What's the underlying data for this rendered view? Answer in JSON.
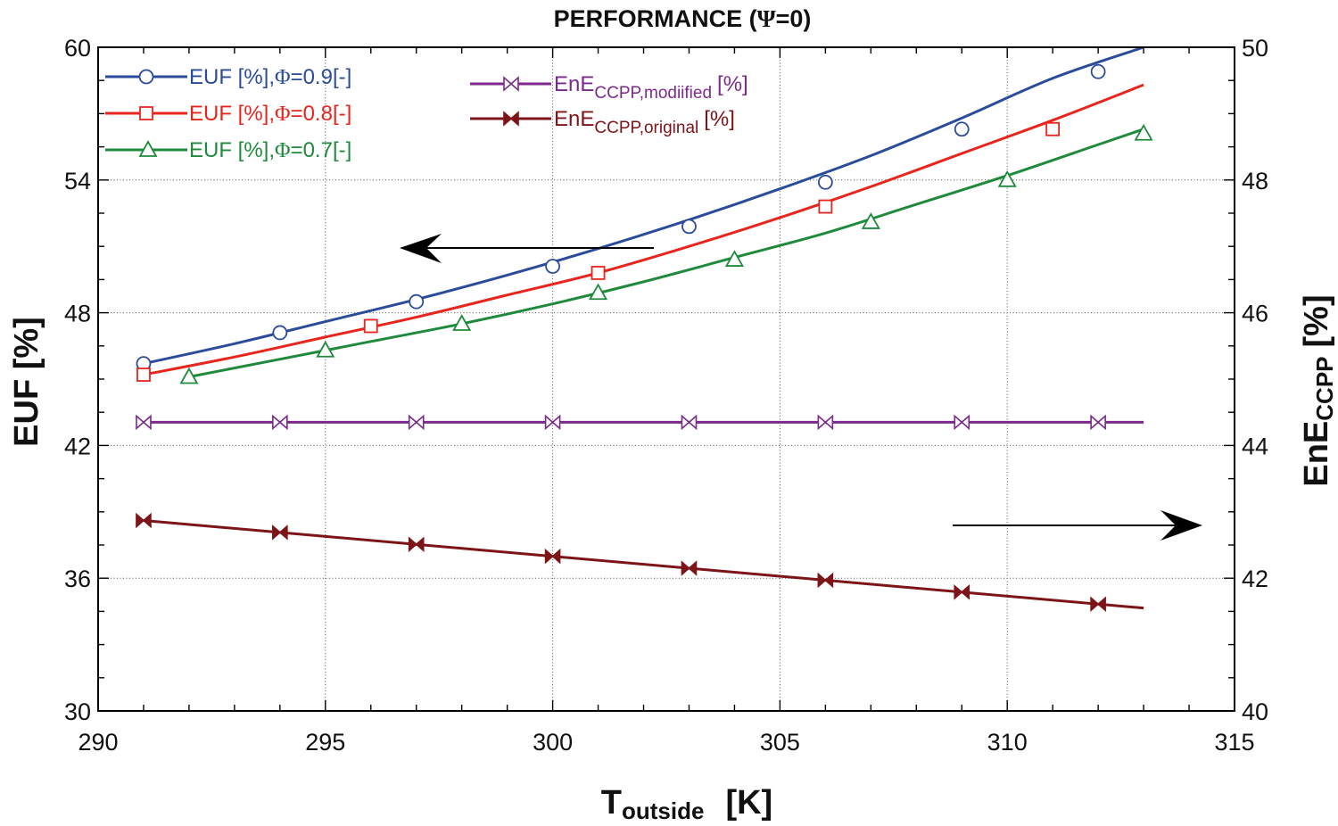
{
  "chart_data": {
    "type": "line",
    "title_prefix": "PERFORMANCE (",
    "title_symbol": "Ψ",
    "title_suffix": "=0)",
    "xlabel_main": "T",
    "xlabel_sub": "outside",
    "xlabel_unit": "[K]",
    "ylabel_left": "EUF [%]",
    "ylabel_right_main": "EnE",
    "ylabel_right_sub": "CCPP",
    "ylabel_right_unit": "[%]",
    "xlim": [
      290,
      315
    ],
    "ylim_left": [
      30,
      60
    ],
    "ylim_right": [
      40,
      50
    ],
    "x_ticks": [
      "290",
      "295",
      "300",
      "305",
      "310",
      "315"
    ],
    "y_left_ticks": [
      "30",
      "36",
      "42",
      "48",
      "54",
      "60"
    ],
    "y_right_ticks": [
      "40",
      "42",
      "44",
      "46",
      "48",
      "50"
    ],
    "grid": true,
    "series": [
      {
        "name": "EUF, Phi=0.9",
        "legend_prefix": "EUF [%],",
        "legend_symbol": "Φ",
        "legend_suffix": "=0.9[-]",
        "axis": "left",
        "marker": "circle",
        "color": "#2b4c9b",
        "curve_x": [
          291,
          293,
          295,
          297,
          299,
          301,
          303,
          305,
          307,
          309,
          311,
          313
        ],
        "curve_y": [
          45.7,
          46.6,
          47.6,
          48.6,
          49.7,
          50.9,
          52.2,
          53.6,
          55.1,
          56.8,
          58.6,
          60.0
        ],
        "marker_x": [
          291,
          294,
          297,
          300,
          303,
          306,
          309,
          312
        ],
        "marker_y": [
          45.7,
          47.1,
          48.5,
          50.1,
          51.9,
          53.9,
          56.3,
          58.9
        ]
      },
      {
        "name": "EUF, Phi=0.8",
        "legend_prefix": "EUF [%],",
        "legend_symbol": "Φ",
        "legend_suffix": "=0.8[-]",
        "axis": "left",
        "marker": "square",
        "color": "#e8251d",
        "curve_x": [
          291,
          293,
          295,
          297,
          299,
          301,
          303,
          305,
          307,
          309,
          311,
          313
        ],
        "curve_y": [
          45.2,
          46.0,
          46.9,
          47.8,
          48.8,
          49.8,
          51.0,
          52.3,
          53.7,
          55.2,
          56.7,
          58.3
        ],
        "marker_x": [
          291,
          296,
          301,
          306,
          311
        ],
        "marker_y": [
          45.2,
          47.4,
          49.8,
          52.8,
          56.3
        ]
      },
      {
        "name": "EUF, Phi=0.7",
        "legend_prefix": "EUF [%],",
        "legend_symbol": "Φ",
        "legend_suffix": "=0.7[-]",
        "axis": "left",
        "marker": "triangle",
        "color": "#1f8a3c",
        "curve_x": [
          292,
          294,
          296,
          298,
          300,
          302,
          304,
          306,
          308,
          310,
          312,
          313
        ],
        "curve_y": [
          45.1,
          45.9,
          46.7,
          47.5,
          48.4,
          49.4,
          50.5,
          51.6,
          52.9,
          54.2,
          55.6,
          56.3
        ],
        "marker_x": [
          292,
          295,
          298,
          301,
          304,
          307,
          310,
          313
        ],
        "marker_y": [
          45.1,
          46.3,
          47.5,
          48.9,
          50.4,
          52.1,
          54.0,
          56.1
        ]
      },
      {
        "name": "EnE CCPP modified",
        "legend_main": "EnE",
        "legend_sub": "CCPP,modiified",
        "legend_unit": "[%]",
        "axis": "right",
        "marker": "bowtie-open",
        "color": "#7b2a8c",
        "curve_x": [
          291,
          313
        ],
        "curve_y": [
          44.35,
          44.35
        ],
        "marker_x": [
          291,
          294,
          297,
          300,
          303,
          306,
          309,
          312
        ],
        "marker_y": [
          44.35,
          44.35,
          44.35,
          44.35,
          44.35,
          44.35,
          44.35,
          44.35
        ]
      },
      {
        "name": "EnE CCPP original",
        "legend_main": "EnE",
        "legend_sub": "CCPP,original",
        "legend_unit": "[%]",
        "axis": "right",
        "marker": "bowtie-filled",
        "color": "#7d1418",
        "curve_x": [
          291,
          313
        ],
        "curve_y": [
          42.87,
          41.55
        ],
        "marker_x": [
          291,
          294,
          297,
          300,
          303,
          306,
          309,
          312
        ],
        "marker_y": [
          42.87,
          42.69,
          42.51,
          42.33,
          42.15,
          41.97,
          41.79,
          41.61
        ]
      }
    ],
    "annotations": [
      {
        "type": "arrow",
        "direction": "left",
        "meaning": "EUF curves use left axis"
      },
      {
        "type": "arrow",
        "direction": "right",
        "meaning": "EnE curves use right axis"
      }
    ]
  }
}
